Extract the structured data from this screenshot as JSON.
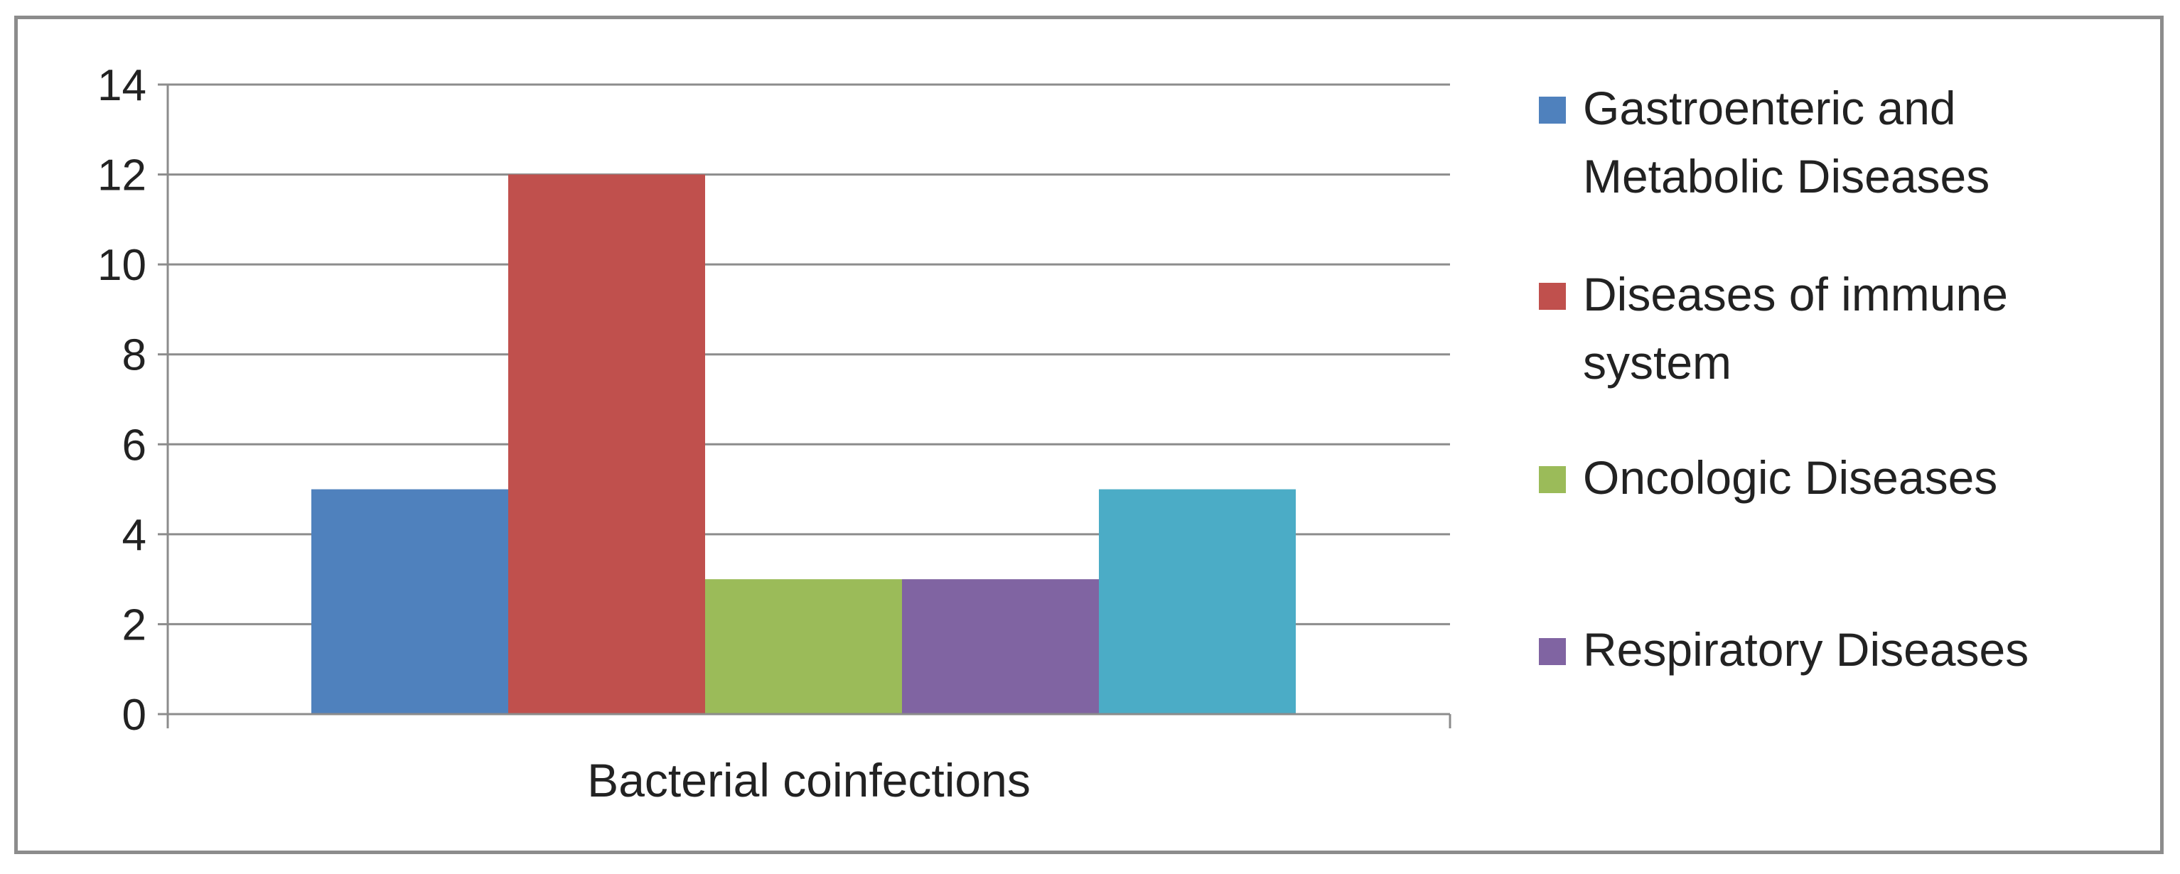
{
  "chart_data": {
    "type": "bar",
    "title": "",
    "xlabel": "",
    "ylabel": "",
    "categories": [
      "Bacterial coinfections"
    ],
    "ylim": [
      0,
      14
    ],
    "yticks": [
      0,
      2,
      4,
      6,
      8,
      10,
      12,
      14
    ],
    "grid": true,
    "legend_position": "right",
    "series": [
      {
        "name": "Gastroenteric and Metabolic Diseases",
        "values": [
          5
        ],
        "color": "#4F81BD"
      },
      {
        "name": "Diseases of immune system",
        "values": [
          12
        ],
        "color": "#C0504D"
      },
      {
        "name": "Oncologic Diseases",
        "values": [
          3
        ],
        "color": "#9BBB59"
      },
      {
        "name": "Respiratory Diseases",
        "values": [
          3
        ],
        "color": "#8064A2"
      },
      {
        "name": "",
        "values": [
          5
        ],
        "color": "#4BACC6"
      }
    ],
    "legend": [
      {
        "lines": [
          "Gastroenteric and",
          "Metabolic Diseases"
        ],
        "color": "#4F81BD"
      },
      {
        "lines": [
          "Diseases of immune",
          "system"
        ],
        "color": "#C0504D"
      },
      {
        "lines": [
          "Oncologic Diseases"
        ],
        "color": "#9BBB59"
      },
      {
        "lines": [
          "Respiratory Diseases"
        ],
        "color": "#8064A2"
      }
    ]
  },
  "colors": {
    "gridline": "#8c8c8c",
    "axis": "#8c8c8c",
    "frame": "#8c8c8c"
  }
}
